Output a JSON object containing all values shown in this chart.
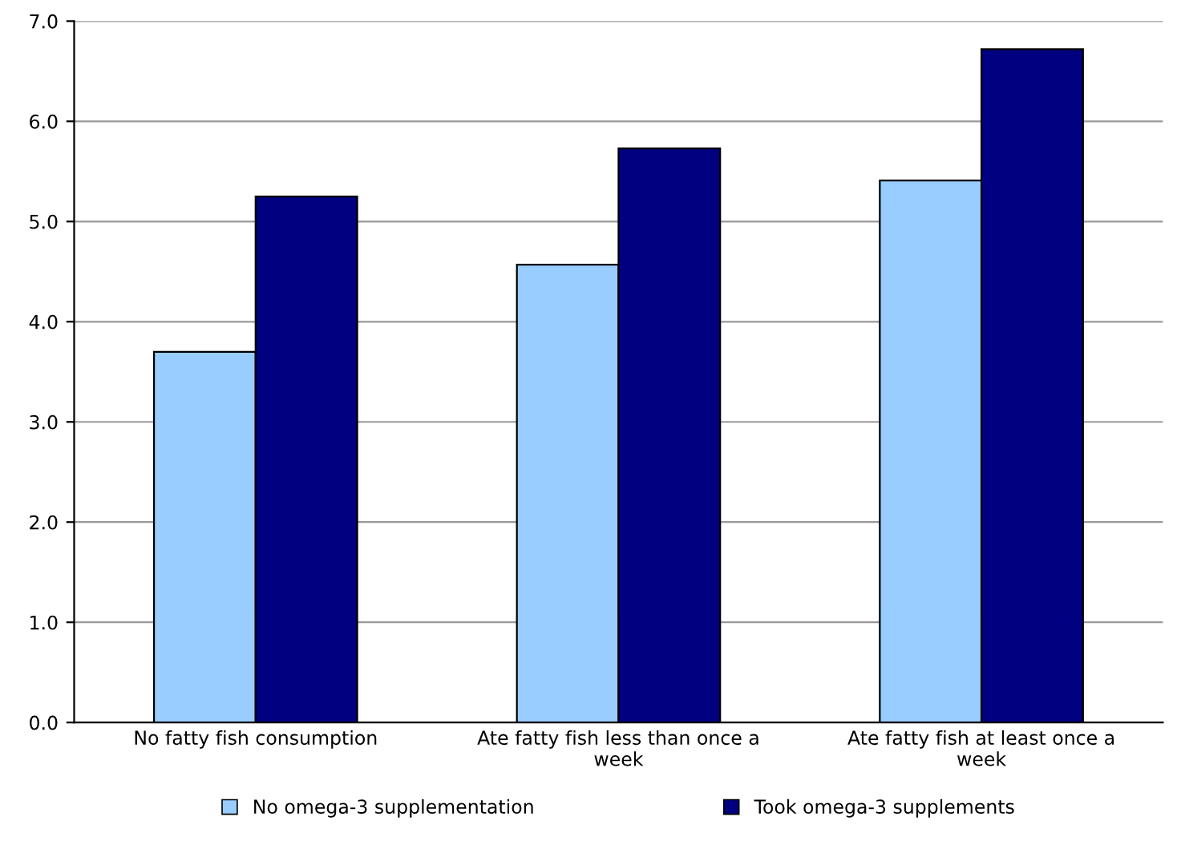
{
  "chart_data": {
    "type": "bar",
    "categories": [
      "No fatty fish consumption",
      "Ate fatty fish less than once a\nweek",
      "Ate fatty fish at least once a\nweek"
    ],
    "series": [
      {
        "name": "No omega-3 supplementation",
        "color": "#99ccff",
        "values": [
          3.7,
          4.57,
          5.41
        ]
      },
      {
        "name": "Took omega-3 supplements",
        "color": "#000080",
        "values": [
          5.25,
          5.73,
          6.72
        ]
      }
    ],
    "ylim": [
      0,
      7
    ],
    "yticks": [
      {
        "value": 0,
        "label": "0.0"
      },
      {
        "value": 1,
        "label": "1.0"
      },
      {
        "value": 2,
        "label": "2.0"
      },
      {
        "value": 3,
        "label": "3.0"
      },
      {
        "value": 4,
        "label": "4.0"
      },
      {
        "value": 5,
        "label": "5.0"
      },
      {
        "value": 6,
        "label": "6.0"
      },
      {
        "value": 7,
        "label": "7.0"
      }
    ],
    "grid": "y",
    "legend": "bottom"
  }
}
